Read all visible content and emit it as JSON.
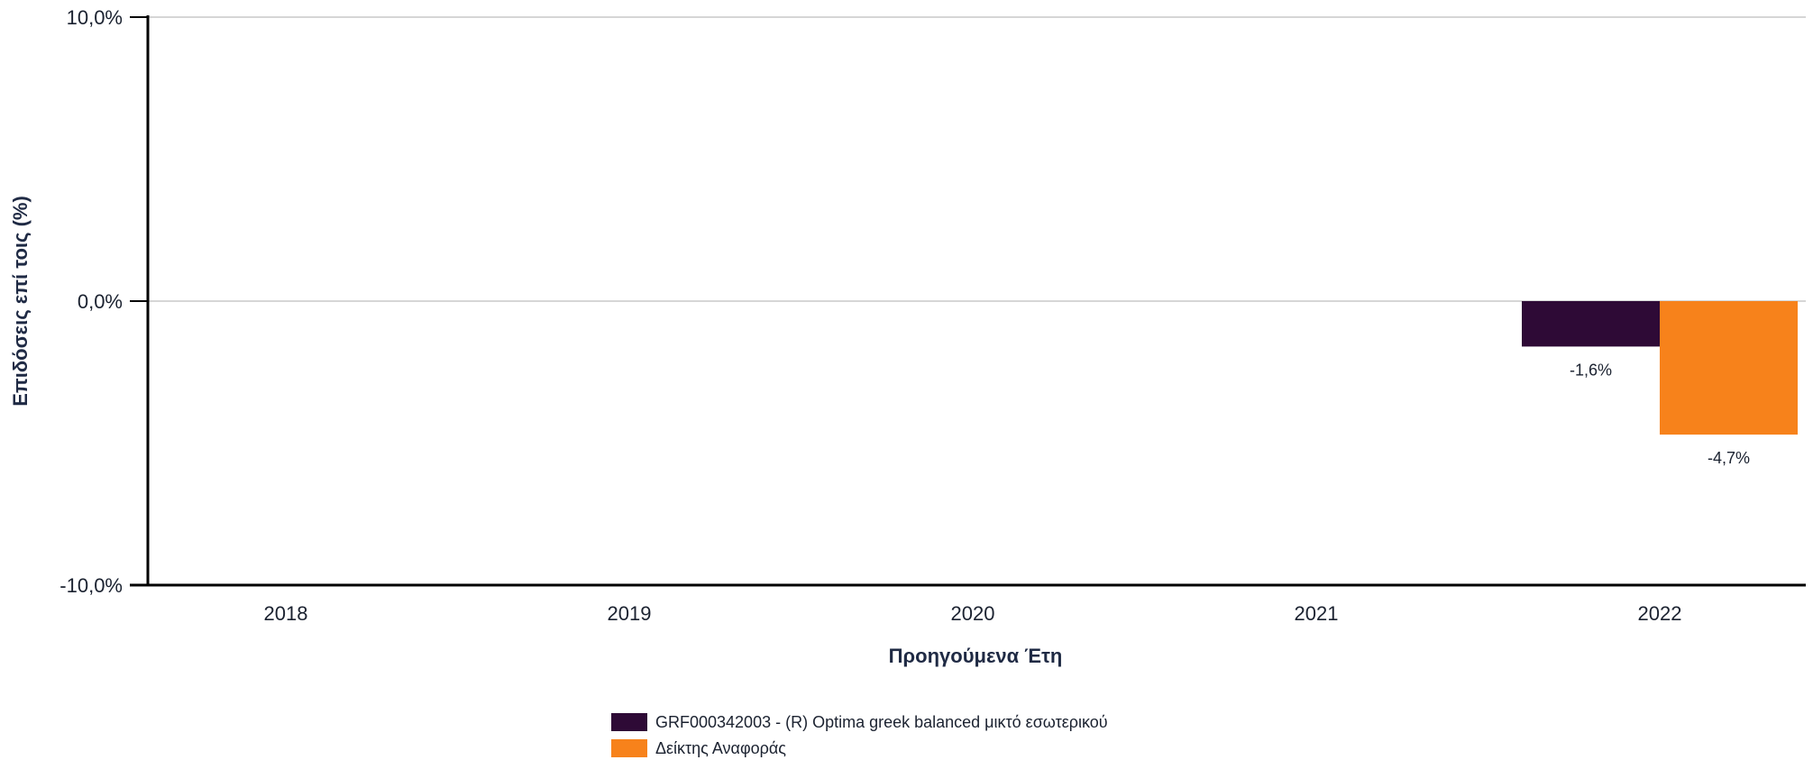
{
  "chart_data": {
    "type": "bar",
    "categories": [
      "2018",
      "2019",
      "2020",
      "2021",
      "2022"
    ],
    "series": [
      {
        "name": "GRF000342003  - (R) Optima greek balanced μικτό εσωτερικού",
        "color": "#2e0a36",
        "values": [
          null,
          null,
          null,
          null,
          -1.6
        ],
        "labels": [
          "",
          "",
          "",
          "",
          "-1,6%"
        ]
      },
      {
        "name": "Δείκτης Αναφοράς",
        "color": "#f7821b",
        "values": [
          null,
          null,
          null,
          null,
          -4.7
        ],
        "labels": [
          "",
          "",
          "",
          "",
          "-4,7%"
        ]
      }
    ],
    "xlabel": "Προηγούμενα Έτη",
    "ylabel": "Επιδόσεις επί τοις (%)",
    "ylim": [
      -10,
      10
    ],
    "yticks": [
      {
        "value": 10,
        "label": "10,0%"
      },
      {
        "value": 0,
        "label": "0,0%"
      },
      {
        "value": -10,
        "label": "-10,0%"
      }
    ],
    "grid": true,
    "legend_position": "bottom"
  }
}
